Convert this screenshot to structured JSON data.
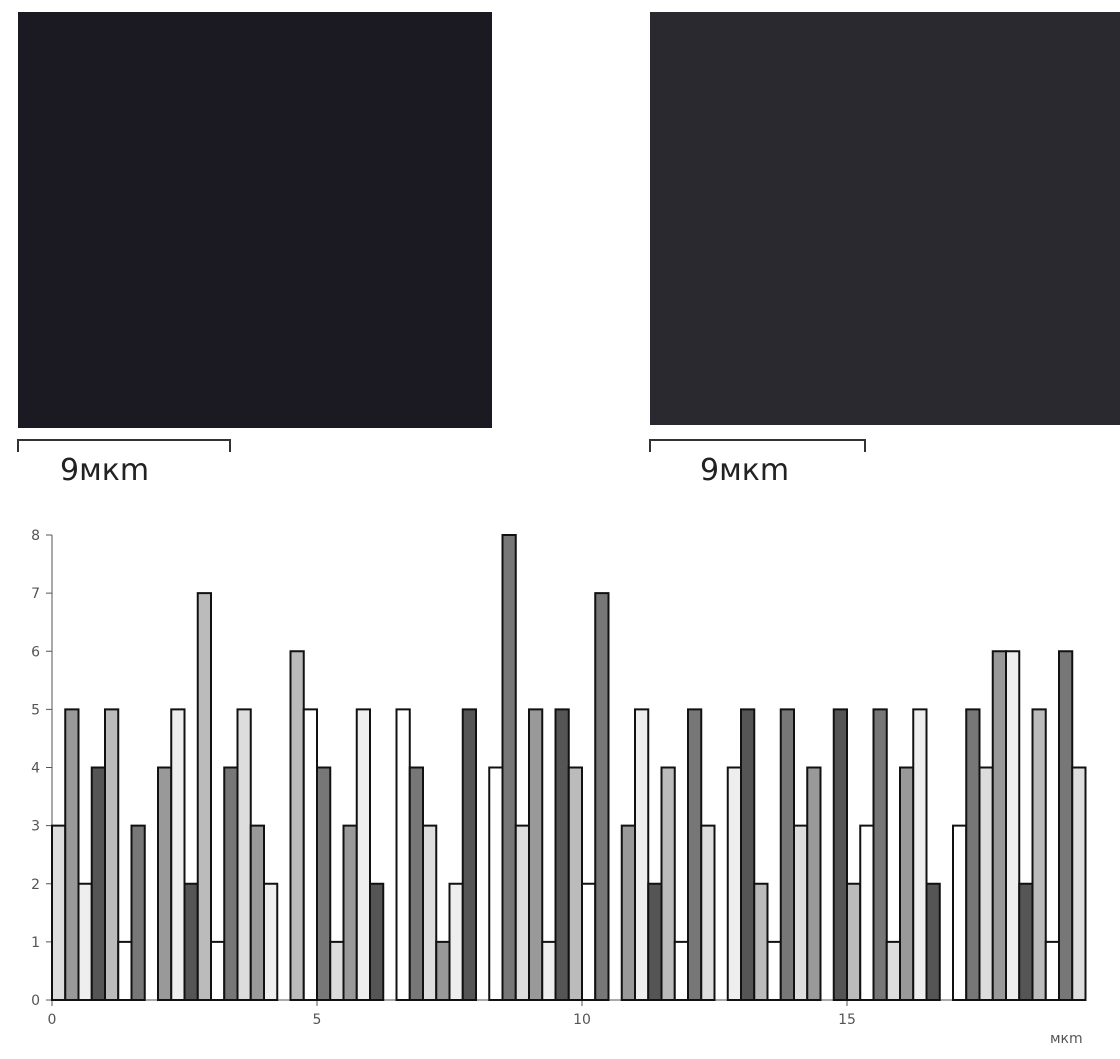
{
  "scale_labels": [
    "9мкm",
    "9мкm"
  ],
  "chart_data": {
    "type": "step",
    "x_unit": "мкm",
    "x": [
      0,
      0.25,
      0.5,
      0.75,
      1,
      1.25,
      1.5,
      1.75,
      2,
      2.25,
      2.5,
      2.75,
      3,
      3.25,
      3.5,
      3.75,
      4,
      4.25,
      4.5,
      4.75,
      5,
      5.25,
      5.5,
      5.75,
      6,
      6.25,
      6.5,
      6.75,
      7,
      7.25,
      7.5,
      7.75,
      8,
      8.25,
      8.5,
      8.75,
      9,
      9.25,
      9.5,
      9.75,
      10,
      10.25,
      10.5,
      10.75,
      11,
      11.25,
      11.5,
      11.75,
      12,
      12.25,
      12.5,
      12.75,
      13,
      13.25,
      13.5,
      13.75,
      14,
      14.25,
      14.5,
      14.75,
      15,
      15.25,
      15.5,
      15.75,
      16,
      16.25,
      16.5,
      16.75,
      17,
      17.25,
      17.5,
      17.75,
      18,
      18.25,
      18.5,
      18.75,
      19,
      19.25
    ],
    "values": [
      3,
      5,
      2,
      4,
      5,
      1,
      3,
      0,
      4,
      5,
      2,
      7,
      1,
      4,
      5,
      3,
      2,
      0,
      6,
      5,
      4,
      1,
      3,
      5,
      2,
      0,
      5,
      4,
      3,
      1,
      2,
      5,
      0,
      4,
      8,
      3,
      5,
      1,
      5,
      4,
      2,
      7,
      0,
      3,
      5,
      2,
      4,
      1,
      5,
      3,
      0,
      4,
      5,
      2,
      1,
      5,
      3,
      4,
      0,
      5,
      2,
      3,
      5,
      1,
      4,
      5,
      2,
      0,
      3,
      5,
      4,
      6,
      6,
      2,
      5,
      1,
      6,
      4
    ],
    "color": "#111111",
    "xlim": [
      0,
      20
    ],
    "ylim": [
      0,
      8
    ],
    "xticks": [
      0,
      5,
      10,
      15
    ],
    "yticks": [
      0,
      1,
      2,
      3,
      4,
      5,
      6,
      7,
      8
    ]
  }
}
